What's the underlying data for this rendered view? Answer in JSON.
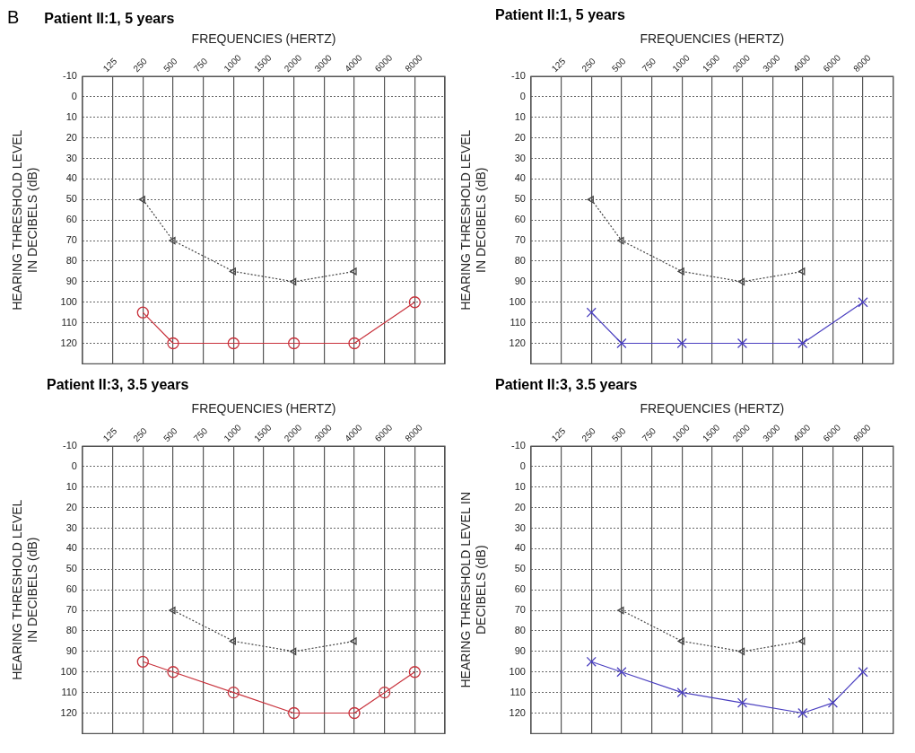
{
  "chart_data": [
    {
      "type": "line",
      "title": "Patient II:1, 5 years",
      "annotations": [
        "B"
      ],
      "xlabel": "FREQUENCIES (HERTZ)",
      "ylabel": "HEARING THRESHOLD LEVEL\nIN DECIBELS (dB)",
      "categories": [
        null,
        "125",
        "250",
        "500",
        "750",
        "1000",
        "1500",
        "2000",
        "3000",
        "4000",
        "6000",
        "8000",
        null
      ],
      "ylim": [
        130,
        -10
      ],
      "yticks": [
        -10,
        0,
        10,
        20,
        30,
        40,
        50,
        60,
        70,
        80,
        90,
        100,
        110,
        120
      ],
      "grid": true,
      "legend": false,
      "series": [
        {
          "color": "#c8323c",
          "marker": "circle",
          "line_style": "solid",
          "values": [
            null,
            null,
            105,
            120,
            null,
            120,
            null,
            120,
            null,
            120,
            null,
            100,
            null
          ]
        },
        {
          "color": "#444444",
          "marker": "triangle",
          "line_style": "dotted",
          "values": [
            null,
            null,
            50,
            70,
            null,
            85,
            null,
            90,
            null,
            85,
            null,
            null,
            null
          ]
        }
      ]
    },
    {
      "type": "line",
      "title": "Patient II:1, 5 years",
      "xlabel": "FREQUENCIES (HERTZ)",
      "ylabel": "HEARING THRESHOLD LEVEL\nIN DECIBELS (dB)",
      "categories": [
        null,
        "125",
        "250",
        "500",
        "750",
        "1000",
        "1500",
        "2000",
        "3000",
        "4000",
        "6000",
        "8000",
        null
      ],
      "ylim": [
        130,
        -10
      ],
      "yticks": [
        -10,
        0,
        10,
        20,
        30,
        40,
        50,
        60,
        70,
        80,
        90,
        100,
        110,
        120
      ],
      "grid": true,
      "legend": false,
      "series": [
        {
          "color": "#4a3fc0",
          "marker": "cross",
          "line_style": "solid",
          "values": [
            null,
            null,
            105,
            120,
            null,
            120,
            null,
            120,
            null,
            120,
            null,
            100,
            null
          ]
        },
        {
          "color": "#444444",
          "marker": "triangle",
          "line_style": "dotted",
          "values": [
            null,
            null,
            50,
            70,
            null,
            85,
            null,
            90,
            null,
            85,
            null,
            null,
            null
          ]
        }
      ]
    },
    {
      "type": "line",
      "title": "Patient II:3, 3.5 years",
      "xlabel": "FREQUENCIES (HERTZ)",
      "ylabel": "HEARING THRESHOLD LEVEL\nIN DECIBELS (dB)",
      "categories": [
        null,
        "125",
        "250",
        "500",
        "750",
        "1000",
        "1500",
        "2000",
        "3000",
        "4000",
        "6000",
        "8000",
        null
      ],
      "ylim": [
        130,
        -10
      ],
      "yticks": [
        -10,
        0,
        10,
        20,
        30,
        40,
        50,
        60,
        70,
        80,
        90,
        100,
        110,
        120
      ],
      "grid": true,
      "legend": false,
      "series": [
        {
          "color": "#c8323c",
          "marker": "circle",
          "line_style": "solid",
          "values": [
            null,
            null,
            95,
            100,
            null,
            110,
            null,
            120,
            null,
            120,
            110,
            100,
            null
          ]
        },
        {
          "color": "#444444",
          "marker": "triangle",
          "line_style": "dotted",
          "values": [
            null,
            null,
            null,
            70,
            null,
            85,
            null,
            90,
            null,
            85,
            null,
            null,
            null
          ]
        }
      ]
    },
    {
      "type": "line",
      "title": "Patient II:3, 3.5 years",
      "xlabel": "FREQUENCIES (HERTZ)",
      "ylabel": "HEARING THRESHOLD LEVEL IN\nDECIBELS (dB)",
      "categories": [
        null,
        "125",
        "250",
        "500",
        "750",
        "1000",
        "1500",
        "2000",
        "3000",
        "4000",
        "6000",
        "8000",
        null
      ],
      "ylim": [
        130,
        -10
      ],
      "yticks": [
        -10,
        0,
        10,
        20,
        30,
        40,
        50,
        60,
        70,
        80,
        90,
        100,
        110,
        120
      ],
      "grid": true,
      "legend": false,
      "series": [
        {
          "color": "#4a3fc0",
          "marker": "cross",
          "line_style": "solid",
          "values": [
            null,
            null,
            95,
            100,
            null,
            110,
            null,
            115,
            null,
            120,
            115,
            100,
            null
          ]
        },
        {
          "color": "#444444",
          "marker": "triangle",
          "line_style": "dotted",
          "values": [
            null,
            null,
            null,
            70,
            null,
            85,
            null,
            90,
            null,
            85,
            null,
            null,
            null
          ]
        }
      ]
    }
  ]
}
